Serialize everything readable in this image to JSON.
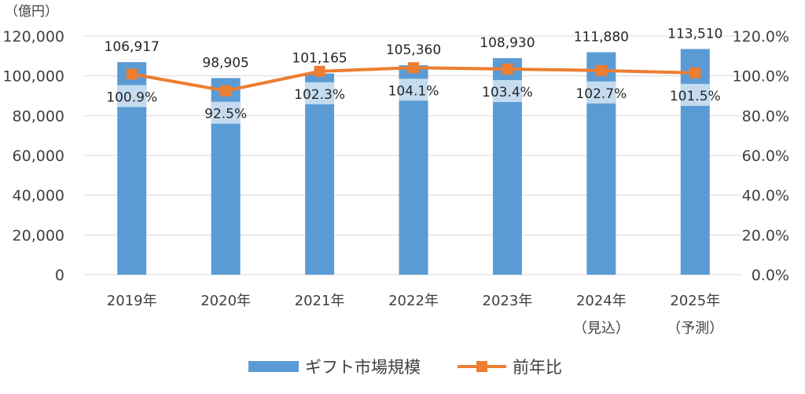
{
  "chart_data": {
    "type": "bar",
    "unit_label": "（億円）",
    "categories": [
      {
        "line1": "2019年",
        "line2": ""
      },
      {
        "line1": "2020年",
        "line2": ""
      },
      {
        "line1": "2021年",
        "line2": ""
      },
      {
        "line1": "2022年",
        "line2": ""
      },
      {
        "line1": "2023年",
        "line2": ""
      },
      {
        "line1": "2024年",
        "line2": "（見込）"
      },
      {
        "line1": "2025年",
        "line2": "（予測）"
      }
    ],
    "series": [
      {
        "name": "ギフト市場規模",
        "type": "bar",
        "axis": "left",
        "color": "#5B9BD5",
        "values": [
          106917,
          98905,
          101165,
          105360,
          108930,
          111880,
          113510
        ],
        "labels": [
          "106,917",
          "98,905",
          "101,165",
          "105,360",
          "108,930",
          "111,880",
          "113,510"
        ]
      },
      {
        "name": "前年比",
        "type": "line",
        "axis": "right",
        "color": "#ED7D31",
        "values": [
          100.9,
          92.5,
          102.3,
          104.1,
          103.4,
          102.7,
          101.5
        ],
        "labels": [
          "100.9%",
          "92.5%",
          "102.3%",
          "104.1%",
          "103.4%",
          "102.7%",
          "101.5%"
        ]
      }
    ],
    "y_left": {
      "range": [
        0,
        120000
      ],
      "ticks": [
        0,
        20000,
        40000,
        60000,
        80000,
        100000,
        120000
      ],
      "tick_labels": [
        "0",
        "20,000",
        "40,000",
        "60,000",
        "80,000",
        "100,000",
        "120,000"
      ]
    },
    "y_right": {
      "range": [
        0,
        120
      ],
      "ticks": [
        0,
        20,
        40,
        60,
        80,
        100,
        120
      ],
      "tick_labels": [
        "0.0%",
        "20.0%",
        "40.0%",
        "60.0%",
        "80.0%",
        "100.0%",
        "120.0%"
      ]
    },
    "grid": true,
    "legend_position": "bottom"
  }
}
